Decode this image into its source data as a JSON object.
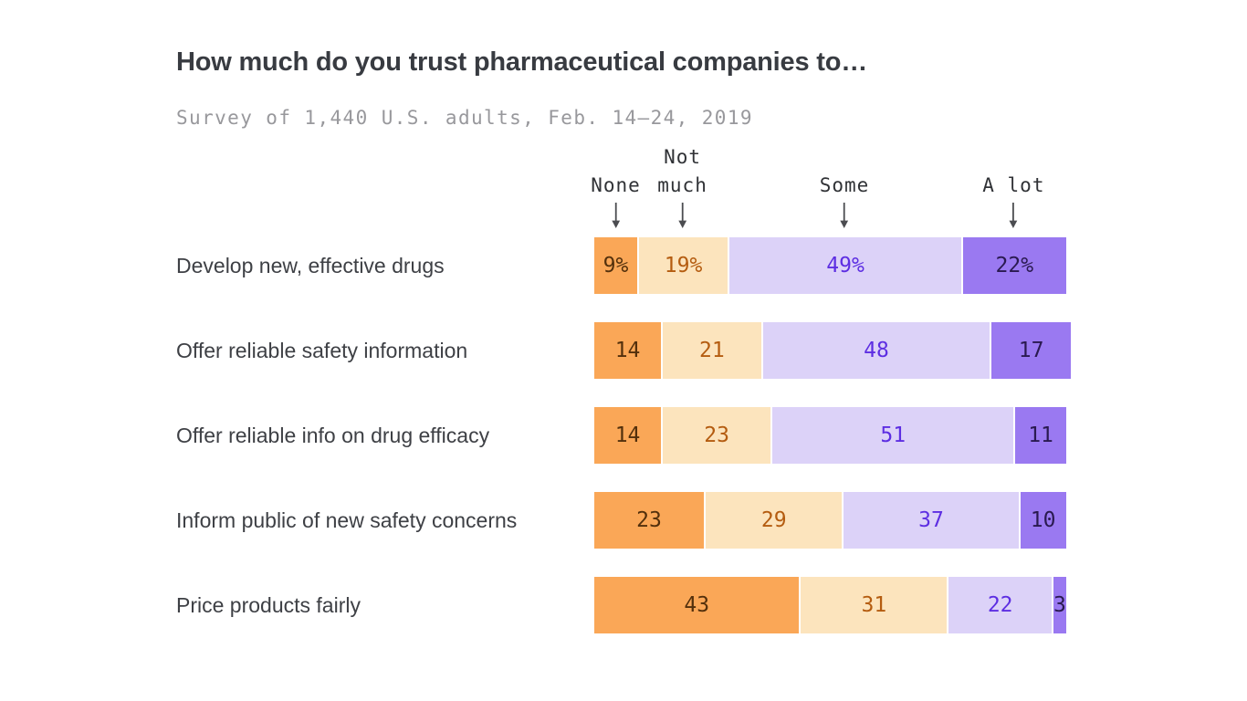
{
  "title": "How much do you trust pharmaceutical companies to…",
  "subtitle": "Survey of 1,440 U.S. adults, Feb. 14–24, 2019",
  "chart_data": {
    "type": "bar",
    "variant": "horizontal-100pct-stacked",
    "title": "How much do you trust pharmaceutical companies to…",
    "subtitle": "Survey of 1,440 U.S. adults, Feb. 14–24, 2019",
    "categories": [
      "Develop new, effective drugs",
      "Offer reliable safety information",
      "Offer reliable info on drug efficacy",
      "Inform public of new safety concerns",
      "Price products fairly"
    ],
    "series": [
      {
        "name": "None",
        "color": "#faa757",
        "label_color": "#53300c",
        "values": [
          9,
          14,
          14,
          23,
          43
        ]
      },
      {
        "name": "Not much",
        "color": "#fce4bd",
        "label_color": "#b45c10",
        "values": [
          19,
          21,
          23,
          29,
          31
        ]
      },
      {
        "name": "Some",
        "color": "#dcd2f8",
        "label_color": "#5d2ee2",
        "values": [
          49,
          48,
          51,
          37,
          22
        ]
      },
      {
        "name": "A lot",
        "color": "#9a79f1",
        "label_color": "#2a1a50",
        "values": [
          22,
          17,
          11,
          10,
          3
        ]
      }
    ],
    "value_labels": [
      [
        "9%",
        "19%",
        "49%",
        "22%"
      ],
      [
        "14",
        "21",
        "48",
        "17"
      ],
      [
        "14",
        "23",
        "51",
        "11"
      ],
      [
        "23",
        "29",
        "37",
        "10"
      ],
      [
        "43",
        "31",
        "22",
        "3"
      ]
    ],
    "legend_display": [
      "None",
      "Not\nmuch",
      "Some",
      "A lot"
    ],
    "legend_position": "top, arrows pointing to centers of first-row segments",
    "xlim": [
      0,
      100
    ],
    "grid": false,
    "arrow_color": "#4b4c50"
  }
}
